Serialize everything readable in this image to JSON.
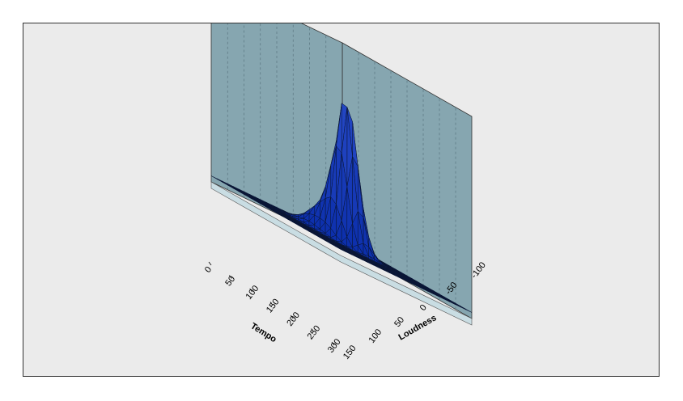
{
  "chart_data": {
    "type": "surface3d",
    "title": "",
    "xlabel": "Tempo",
    "ylabel": "Loudness",
    "zlabel": "",
    "x_ticks": [
      "0",
      "50",
      "100",
      "150",
      "200",
      "250",
      "300"
    ],
    "y_ticks": [
      "150",
      "100",
      "50",
      "0",
      "-50",
      "-100"
    ],
    "xlim": [
      0,
      300
    ],
    "ylim": [
      150,
      -100
    ],
    "grid": true,
    "surface_color": "#1a3fa0",
    "wall_color": "#86a6b0",
    "floor_color": "#c9dde3",
    "background_color": "#ebebeb",
    "peak": {
      "tempo": 120,
      "loudness": -10,
      "relative_height": 1.0
    },
    "description_series": "density surface; single peak near tempo 100-140, loudness -20 to 0; near-zero elsewhere"
  }
}
